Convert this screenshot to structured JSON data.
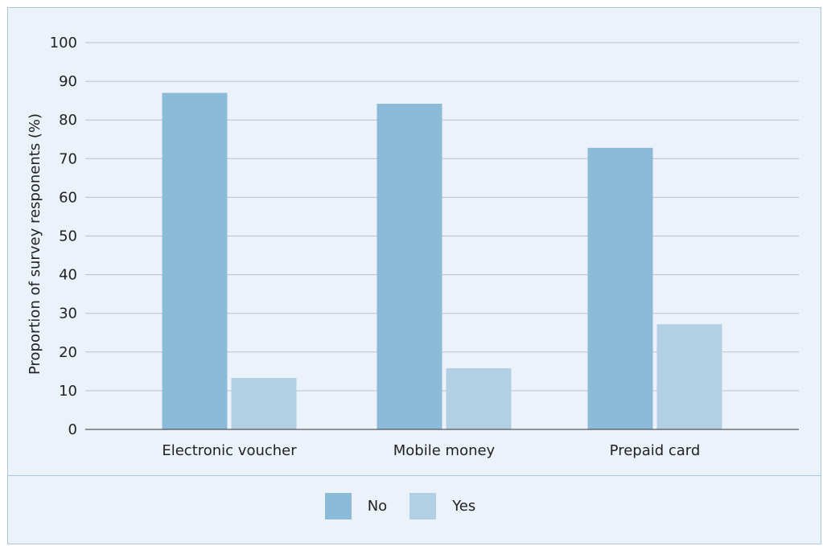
{
  "chart_data": {
    "type": "bar",
    "title": "",
    "xlabel": "",
    "ylabel": "Proportion of survey responents (%)",
    "ylim": [
      0,
      100
    ],
    "yticks": [
      0,
      10,
      20,
      30,
      40,
      50,
      60,
      70,
      80,
      90,
      100
    ],
    "grid": true,
    "categories": [
      "Electronic voucher",
      "Mobile money",
      "Prepaid card"
    ],
    "series": [
      {
        "name": "No",
        "color": "#8bbbd9",
        "values": [
          87,
          84.2,
          72.8
        ]
      },
      {
        "name": "Yes",
        "color": "#b2cfe4",
        "values": [
          13.3,
          15.8,
          27.2
        ]
      }
    ],
    "legend_position": "bottom"
  },
  "colors": {
    "background": "#ecf2fa",
    "border": "#a9c6de",
    "gridline": "#b9c2ca",
    "axis": "#333333"
  }
}
